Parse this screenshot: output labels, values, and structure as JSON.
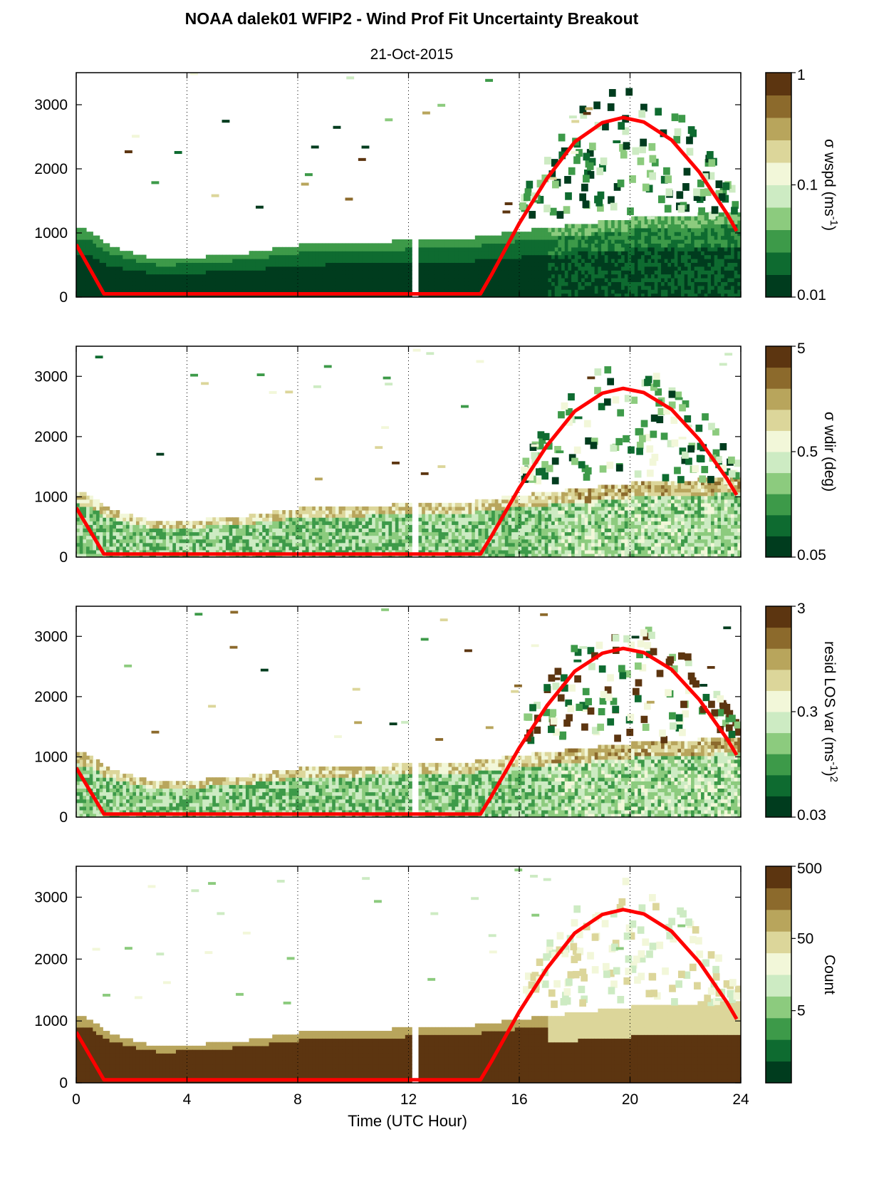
{
  "figure": {
    "title": "NOAA dalek01 WFIP2 - Wind Prof Fit Uncertainty Breakout",
    "subtitle": "21-Oct-2015",
    "xlabel": "Time (UTC Hour)"
  },
  "colors": {
    "sun_curve": "#ff0000",
    "colormap": [
      "#003c1e",
      "#0e6b30",
      "#3d9a49",
      "#8ccb7e",
      "#cdebc3",
      "#f2f7d9",
      "#dcd69a",
      "#b8a55c",
      "#8c6a2c",
      "#5c3510"
    ]
  },
  "chart_data": [
    {
      "type": "heatmap",
      "xlim": [
        0,
        24
      ],
      "ylim": [
        0,
        3500
      ],
      "xticks": [
        0,
        4,
        8,
        12,
        16,
        20,
        24
      ],
      "yticks": [
        0,
        1000,
        2000,
        3000
      ],
      "grid": "vertical dotted at 4-hour intervals",
      "colorbar": {
        "label": "σ wspd (ms",
        "label_sup": "-1",
        "label_end": ")",
        "scale": "log",
        "ticks": [
          "0.01",
          "0.1",
          "1"
        ],
        "range": [
          0.01,
          1
        ]
      },
      "sun_curve": {
        "x": [
          0,
          1,
          14.6,
          15,
          16,
          17,
          18,
          19,
          19.75,
          20.5,
          21.5,
          22.5,
          23.5,
          23.85
        ],
        "y": [
          820,
          50,
          50,
          350,
          1150,
          1850,
          2420,
          2720,
          2800,
          2730,
          2450,
          1950,
          1300,
          1030
        ]
      },
      "boundary_top": {
        "x": [
          0,
          0.5,
          1,
          2,
          3,
          4,
          6,
          8,
          10,
          12,
          14,
          16,
          18,
          20,
          22,
          24
        ],
        "y": [
          1050,
          1000,
          800,
          650,
          550,
          580,
          650,
          780,
          820,
          850,
          880,
          1000,
          1100,
          1200,
          1250,
          1300
        ]
      }
    },
    {
      "type": "heatmap",
      "xlim": [
        0,
        24
      ],
      "ylim": [
        0,
        3500
      ],
      "xticks": [
        0,
        4,
        8,
        12,
        16,
        20,
        24
      ],
      "yticks": [
        0,
        1000,
        2000,
        3000
      ],
      "grid": "vertical dotted at 4-hour intervals",
      "colorbar": {
        "label": "σ wdir (deg)",
        "label_sup": "",
        "label_end": "",
        "scale": "log",
        "ticks": [
          "0.05",
          "0.5",
          "5"
        ],
        "range": [
          0.05,
          5
        ]
      },
      "sun_curve": {
        "x": [
          0,
          1,
          14.6,
          15,
          16,
          17,
          18,
          19,
          19.75,
          20.5,
          21.5,
          22.5,
          23.5,
          23.85
        ],
        "y": [
          820,
          50,
          50,
          350,
          1150,
          1850,
          2420,
          2720,
          2800,
          2730,
          2450,
          1950,
          1300,
          1030
        ]
      },
      "boundary_top": {
        "x": [
          0,
          0.5,
          1,
          2,
          3,
          4,
          6,
          8,
          10,
          12,
          14,
          16,
          18,
          20,
          22,
          24
        ],
        "y": [
          1050,
          1000,
          800,
          650,
          550,
          580,
          650,
          780,
          820,
          850,
          880,
          1000,
          1100,
          1200,
          1250,
          1300
        ]
      }
    },
    {
      "type": "heatmap",
      "xlim": [
        0,
        24
      ],
      "ylim": [
        0,
        3500
      ],
      "xticks": [
        0,
        4,
        8,
        12,
        16,
        20,
        24
      ],
      "yticks": [
        0,
        1000,
        2000,
        3000
      ],
      "grid": "vertical dotted at 4-hour intervals",
      "colorbar": {
        "label": "resid LOS var (ms",
        "label_sup": "-1",
        "label_end": ")",
        "label_sup2": "2",
        "scale": "log",
        "ticks": [
          "0.03",
          "0.3",
          "3"
        ],
        "range": [
          0.03,
          3
        ]
      },
      "sun_curve": {
        "x": [
          0,
          1,
          14.6,
          15,
          16,
          17,
          18,
          19,
          19.75,
          20.5,
          21.5,
          22.5,
          23.5,
          23.85
        ],
        "y": [
          820,
          50,
          50,
          350,
          1150,
          1850,
          2420,
          2720,
          2800,
          2730,
          2450,
          1950,
          1300,
          1030
        ]
      },
      "boundary_top": {
        "x": [
          0,
          0.5,
          1,
          2,
          3,
          4,
          6,
          8,
          10,
          12,
          14,
          16,
          18,
          20,
          22,
          24
        ],
        "y": [
          1050,
          1000,
          800,
          650,
          550,
          580,
          650,
          780,
          820,
          850,
          880,
          1000,
          1100,
          1200,
          1250,
          1300
        ]
      }
    },
    {
      "type": "heatmap",
      "xlim": [
        0,
        24
      ],
      "ylim": [
        0,
        3500
      ],
      "xticks": [
        0,
        4,
        8,
        12,
        16,
        20,
        24
      ],
      "yticks": [
        0,
        1000,
        2000,
        3000
      ],
      "grid": "vertical dotted at 4-hour intervals",
      "colorbar": {
        "label": "Count",
        "label_sup": "",
        "label_end": "",
        "scale": "log",
        "ticks": [
          "5",
          "50",
          "500"
        ],
        "range": [
          0.5,
          500
        ]
      },
      "sun_curve": {
        "x": [
          0,
          1,
          14.6,
          15,
          16,
          17,
          18,
          19,
          19.75,
          20.5,
          21.5,
          22.5,
          23.5,
          23.85
        ],
        "y": [
          820,
          50,
          50,
          350,
          1150,
          1850,
          2420,
          2720,
          2800,
          2730,
          2450,
          1950,
          1300,
          1030
        ]
      },
      "boundary_top": {
        "x": [
          0,
          0.5,
          1,
          2,
          3,
          4,
          6,
          8,
          10,
          12,
          14,
          16,
          18,
          20,
          22,
          24
        ],
        "y": [
          1050,
          1000,
          800,
          650,
          550,
          580,
          650,
          780,
          820,
          850,
          880,
          1000,
          1100,
          1200,
          1250,
          1300
        ]
      }
    }
  ]
}
